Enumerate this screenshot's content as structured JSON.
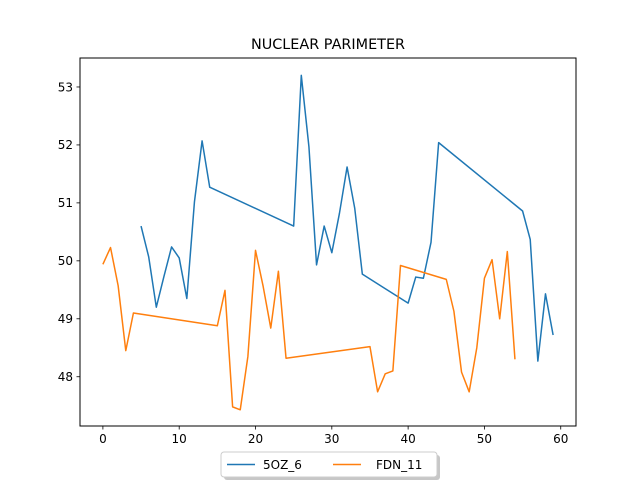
{
  "chart_data": {
    "type": "line",
    "title": "NUCLEAR PARIMETER",
    "xlabel": "",
    "ylabel": "",
    "xlim": [
      -3,
      62
    ],
    "ylim": [
      47.15,
      53.5
    ],
    "x_ticks": [
      0,
      10,
      20,
      30,
      40,
      50,
      60
    ],
    "y_ticks": [
      48,
      49,
      50,
      51,
      52,
      53
    ],
    "grid": false,
    "legend_position": "bottom-center",
    "series": [
      {
        "name": "5OZ_6",
        "color": "#1f77b4",
        "x": [
          5,
          6,
          7,
          8,
          9,
          10,
          11,
          12,
          13,
          14,
          25,
          26,
          27,
          28,
          29,
          30,
          31,
          32,
          33,
          34,
          40,
          41,
          42,
          43,
          44,
          55,
          56,
          57,
          58,
          59
        ],
        "y": [
          50.6,
          50.07,
          49.2,
          49.73,
          50.24,
          50.05,
          49.35,
          51.02,
          52.07,
          51.27,
          50.6,
          53.2,
          51.97,
          49.93,
          50.6,
          50.14,
          50.82,
          51.62,
          50.91,
          49.77,
          49.27,
          49.72,
          49.7,
          50.32,
          52.04,
          50.86,
          50.37,
          48.27,
          49.43,
          48.72
        ]
      },
      {
        "name": "FDN_11",
        "color": "#ff7f0e",
        "x": [
          0,
          1,
          2,
          3,
          4,
          15,
          16,
          17,
          18,
          19,
          20,
          21,
          22,
          23,
          24,
          35,
          36,
          37,
          38,
          39,
          45,
          46,
          47,
          48,
          49,
          50,
          51,
          52,
          53,
          54
        ],
        "y": [
          49.94,
          50.23,
          49.57,
          48.45,
          49.1,
          48.88,
          49.49,
          47.48,
          47.43,
          48.35,
          50.18,
          49.56,
          48.84,
          49.82,
          48.32,
          48.52,
          47.74,
          48.05,
          48.1,
          49.92,
          49.68,
          49.13,
          48.08,
          47.74,
          48.5,
          49.7,
          50.02,
          49.0,
          50.16,
          48.3
        ]
      }
    ]
  }
}
